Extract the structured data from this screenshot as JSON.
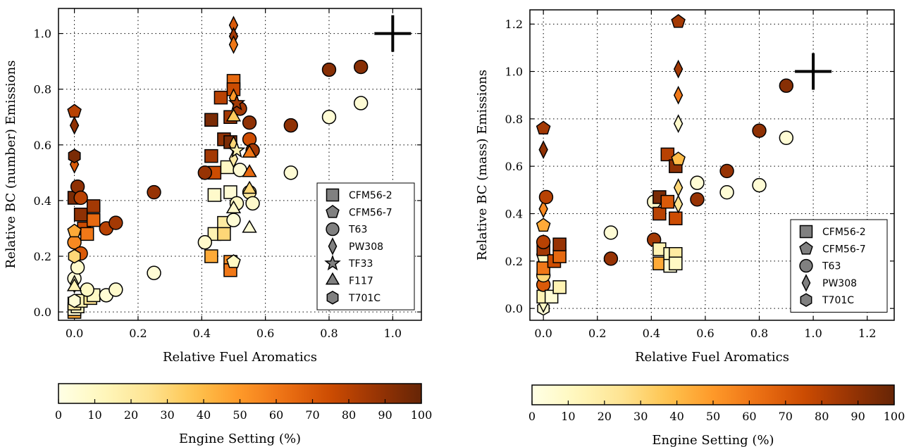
{
  "chart_data": [
    {
      "type": "scatter",
      "title": "",
      "xlabel": "Relative Fuel Aromatics",
      "ylabel": "Relative BC (number) Emissions",
      "xlim": [
        -0.05,
        1.09
      ],
      "ylim": [
        -0.03,
        1.09
      ],
      "xticks": [
        "0.0",
        "0.2",
        "0.4",
        "0.6",
        "0.8",
        "1.0"
      ],
      "yticks": [
        "0.0",
        "0.2",
        "0.4",
        "0.6",
        "0.8",
        "1.0"
      ],
      "grid": true,
      "legend_position": "bottom-right",
      "legend": [
        {
          "label": "CFM56-2",
          "marker": "square"
        },
        {
          "label": "CFM56-7",
          "marker": "pentagon"
        },
        {
          "label": "T63",
          "marker": "circle"
        },
        {
          "label": "PW308",
          "marker": "diamond"
        },
        {
          "label": "TF33",
          "marker": "star"
        },
        {
          "label": "F117",
          "marker": "triangle"
        },
        {
          "label": "T701C",
          "marker": "hexagon"
        }
      ],
      "reference_marker": {
        "x": 1.0,
        "y": 1.0,
        "marker": "plus"
      },
      "colorbar": {
        "label": "Engine Setting (%)",
        "min": 0,
        "max": 100,
        "ticks": [
          "0",
          "10",
          "20",
          "30",
          "40",
          "50",
          "60",
          "70",
          "80",
          "90",
          "100"
        ]
      },
      "points": [
        {
          "x": 0.0,
          "y": 0.0,
          "engine_setting": 45,
          "marker": "square"
        },
        {
          "x": 0.0,
          "y": 0.01,
          "engine_setting": 5,
          "marker": "square"
        },
        {
          "x": 0.01,
          "y": 0.02,
          "engine_setting": 10,
          "marker": "square"
        },
        {
          "x": 0.0,
          "y": 0.03,
          "engine_setting": 20,
          "marker": "square"
        },
        {
          "x": 0.02,
          "y": 0.04,
          "engine_setting": 15,
          "marker": "square"
        },
        {
          "x": 0.05,
          "y": 0.05,
          "engine_setting": 25,
          "marker": "square"
        },
        {
          "x": 0.06,
          "y": 0.06,
          "engine_setting": 10,
          "marker": "square"
        },
        {
          "x": 0.0,
          "y": 0.41,
          "engine_setting": 95,
          "marker": "square"
        },
        {
          "x": 0.02,
          "y": 0.35,
          "engine_setting": 90,
          "marker": "square"
        },
        {
          "x": 0.03,
          "y": 0.3,
          "engine_setting": 75,
          "marker": "square"
        },
        {
          "x": 0.06,
          "y": 0.38,
          "engine_setting": 85,
          "marker": "square"
        },
        {
          "x": 0.06,
          "y": 0.33,
          "engine_setting": 65,
          "marker": "square"
        },
        {
          "x": 0.04,
          "y": 0.28,
          "engine_setting": 60,
          "marker": "square"
        },
        {
          "x": 0.0,
          "y": 0.12,
          "engine_setting": 5,
          "marker": "circle"
        },
        {
          "x": 0.0,
          "y": 0.25,
          "engine_setting": 55,
          "marker": "circle"
        },
        {
          "x": 0.01,
          "y": 0.45,
          "engine_setting": 90,
          "marker": "circle"
        },
        {
          "x": 0.02,
          "y": 0.41,
          "engine_setting": 80,
          "marker": "circle"
        },
        {
          "x": 0.02,
          "y": 0.21,
          "engine_setting": 70,
          "marker": "circle"
        },
        {
          "x": 0.01,
          "y": 0.16,
          "engine_setting": 8,
          "marker": "circle"
        },
        {
          "x": 0.04,
          "y": 0.08,
          "engine_setting": 10,
          "marker": "circle"
        },
        {
          "x": 0.1,
          "y": 0.06,
          "engine_setting": 5,
          "marker": "circle"
        },
        {
          "x": 0.13,
          "y": 0.08,
          "engine_setting": 8,
          "marker": "circle"
        },
        {
          "x": 0.1,
          "y": 0.3,
          "engine_setting": 80,
          "marker": "circle"
        },
        {
          "x": 0.13,
          "y": 0.32,
          "engine_setting": 85,
          "marker": "circle"
        },
        {
          "x": 0.0,
          "y": 0.72,
          "engine_setting": 80,
          "marker": "pentagon"
        },
        {
          "x": 0.0,
          "y": 0.29,
          "engine_setting": 45,
          "marker": "pentagon"
        },
        {
          "x": 0.0,
          "y": 0.67,
          "engine_setting": 90,
          "marker": "diamond"
        },
        {
          "x": 0.0,
          "y": 0.53,
          "engine_setting": 70,
          "marker": "diamond"
        },
        {
          "x": 0.0,
          "y": 0.1,
          "engine_setting": 10,
          "marker": "diamond"
        },
        {
          "x": 0.0,
          "y": 0.56,
          "engine_setting": 95,
          "marker": "hexagon"
        },
        {
          "x": 0.0,
          "y": 0.2,
          "engine_setting": 30,
          "marker": "hexagon"
        },
        {
          "x": 0.0,
          "y": 0.04,
          "engine_setting": 5,
          "marker": "hexagon"
        },
        {
          "x": 0.0,
          "y": 0.09,
          "engine_setting": 15,
          "marker": "triangle"
        },
        {
          "x": 0.25,
          "y": 0.43,
          "engine_setting": 88,
          "marker": "circle"
        },
        {
          "x": 0.25,
          "y": 0.14,
          "engine_setting": 5,
          "marker": "circle"
        },
        {
          "x": 0.43,
          "y": 0.69,
          "engine_setting": 95,
          "marker": "square"
        },
        {
          "x": 0.43,
          "y": 0.56,
          "engine_setting": 85,
          "marker": "square"
        },
        {
          "x": 0.44,
          "y": 0.5,
          "engine_setting": 75,
          "marker": "square"
        },
        {
          "x": 0.44,
          "y": 0.42,
          "engine_setting": 8,
          "marker": "square"
        },
        {
          "x": 0.44,
          "y": 0.28,
          "engine_setting": 15,
          "marker": "square"
        },
        {
          "x": 0.43,
          "y": 0.2,
          "engine_setting": 45,
          "marker": "square"
        },
        {
          "x": 0.46,
          "y": 0.77,
          "engine_setting": 80,
          "marker": "square"
        },
        {
          "x": 0.47,
          "y": 0.62,
          "engine_setting": 90,
          "marker": "square"
        },
        {
          "x": 0.47,
          "y": 0.32,
          "engine_setting": 20,
          "marker": "square"
        },
        {
          "x": 0.47,
          "y": 0.28,
          "engine_setting": 30,
          "marker": "square"
        },
        {
          "x": 0.48,
          "y": 0.52,
          "engine_setting": 10,
          "marker": "square"
        },
        {
          "x": 0.49,
          "y": 0.43,
          "engine_setting": 5,
          "marker": "square"
        },
        {
          "x": 0.49,
          "y": 0.18,
          "engine_setting": 55,
          "marker": "square"
        },
        {
          "x": 0.49,
          "y": 0.15,
          "engine_setting": 60,
          "marker": "square"
        },
        {
          "x": 0.5,
          "y": 0.83,
          "engine_setting": 65,
          "marker": "square"
        },
        {
          "x": 0.5,
          "y": 0.8,
          "engine_setting": 75,
          "marker": "square"
        },
        {
          "x": 0.49,
          "y": 0.7,
          "engine_setting": 85,
          "marker": "square"
        },
        {
          "x": 0.49,
          "y": 0.61,
          "engine_setting": 95,
          "marker": "square"
        },
        {
          "x": 0.5,
          "y": 0.18,
          "engine_setting": 10,
          "marker": "pentagon"
        },
        {
          "x": 0.5,
          "y": 0.33,
          "engine_setting": 5,
          "marker": "circle"
        },
        {
          "x": 0.51,
          "y": 0.39,
          "engine_setting": 10,
          "marker": "circle"
        },
        {
          "x": 0.52,
          "y": 0.51,
          "engine_setting": 5,
          "marker": "circle"
        },
        {
          "x": 0.52,
          "y": 0.73,
          "engine_setting": 85,
          "marker": "circle"
        },
        {
          "x": 0.41,
          "y": 0.5,
          "engine_setting": 88,
          "marker": "circle"
        },
        {
          "x": 0.41,
          "y": 0.25,
          "engine_setting": 8,
          "marker": "circle"
        },
        {
          "x": 0.55,
          "y": 0.68,
          "engine_setting": 90,
          "marker": "circle"
        },
        {
          "x": 0.55,
          "y": 0.62,
          "engine_setting": 75,
          "marker": "circle"
        },
        {
          "x": 0.56,
          "y": 0.58,
          "engine_setting": 85,
          "marker": "circle"
        },
        {
          "x": 0.55,
          "y": 0.43,
          "engine_setting": 20,
          "marker": "circle"
        },
        {
          "x": 0.56,
          "y": 0.39,
          "engine_setting": 8,
          "marker": "circle"
        },
        {
          "x": 0.5,
          "y": 1.03,
          "engine_setting": 70,
          "marker": "diamond"
        },
        {
          "x": 0.5,
          "y": 0.99,
          "engine_setting": 85,
          "marker": "diamond"
        },
        {
          "x": 0.5,
          "y": 0.96,
          "engine_setting": 60,
          "marker": "diamond"
        },
        {
          "x": 0.5,
          "y": 0.77,
          "engine_setting": 50,
          "marker": "diamond"
        },
        {
          "x": 0.5,
          "y": 0.6,
          "engine_setting": 30,
          "marker": "diamond"
        },
        {
          "x": 0.5,
          "y": 0.55,
          "engine_setting": 20,
          "marker": "diamond"
        },
        {
          "x": 0.51,
          "y": 0.75,
          "engine_setting": 85,
          "marker": "star"
        },
        {
          "x": 0.51,
          "y": 0.58,
          "engine_setting": 15,
          "marker": "star"
        },
        {
          "x": 0.5,
          "y": 0.7,
          "engine_setting": 35,
          "marker": "triangle"
        },
        {
          "x": 0.5,
          "y": 0.37,
          "engine_setting": 8,
          "marker": "triangle"
        },
        {
          "x": 0.55,
          "y": 0.57,
          "engine_setting": 60,
          "marker": "triangle"
        },
        {
          "x": 0.55,
          "y": 0.5,
          "engine_setting": 65,
          "marker": "triangle"
        },
        {
          "x": 0.55,
          "y": 0.44,
          "engine_setting": 30,
          "marker": "triangle"
        },
        {
          "x": 0.55,
          "y": 0.3,
          "engine_setting": 5,
          "marker": "triangle"
        },
        {
          "x": 0.68,
          "y": 0.67,
          "engine_setting": 90,
          "marker": "circle"
        },
        {
          "x": 0.68,
          "y": 0.5,
          "engine_setting": 5,
          "marker": "circle"
        },
        {
          "x": 0.8,
          "y": 0.87,
          "engine_setting": 92,
          "marker": "circle"
        },
        {
          "x": 0.8,
          "y": 0.7,
          "engine_setting": 5,
          "marker": "circle"
        },
        {
          "x": 0.9,
          "y": 0.88,
          "engine_setting": 92,
          "marker": "circle"
        },
        {
          "x": 0.9,
          "y": 0.75,
          "engine_setting": 5,
          "marker": "circle"
        }
      ]
    },
    {
      "type": "scatter",
      "title": "",
      "xlabel": "Relative Fuel Aromatics",
      "ylabel": "Relative BC (mass) Emissions",
      "xlim": [
        -0.05,
        1.3
      ],
      "ylim": [
        -0.05,
        1.26
      ],
      "xticks": [
        "0.0",
        "0.2",
        "0.4",
        "0.6",
        "0.8",
        "1.0",
        "1.2"
      ],
      "yticks": [
        "0.0",
        "0.2",
        "0.4",
        "0.6",
        "0.8",
        "1.0",
        "1.2"
      ],
      "grid": true,
      "legend_position": "bottom-right",
      "legend": [
        {
          "label": "CFM56-2",
          "marker": "square"
        },
        {
          "label": "CFM56-7",
          "marker": "pentagon"
        },
        {
          "label": "T63",
          "marker": "circle"
        },
        {
          "label": "PW308",
          "marker": "diamond"
        },
        {
          "label": "T701C",
          "marker": "hexagon"
        }
      ],
      "reference_marker": {
        "x": 1.0,
        "y": 1.0,
        "marker": "plus"
      },
      "colorbar": {
        "label": "Engine Setting (%)",
        "min": 0,
        "max": 100,
        "ticks": [
          "0",
          "10",
          "20",
          "30",
          "40",
          "50",
          "60",
          "70",
          "80",
          "90",
          "100"
        ]
      },
      "points": [
        {
          "x": 0.0,
          "y": 0.0,
          "engine_setting": 5,
          "marker": "hexagon"
        },
        {
          "x": 0.0,
          "y": 0.02,
          "engine_setting": 10,
          "marker": "diamond"
        },
        {
          "x": 0.0,
          "y": 0.05,
          "engine_setting": 15,
          "marker": "square"
        },
        {
          "x": 0.0,
          "y": 0.1,
          "engine_setting": 70,
          "marker": "circle"
        },
        {
          "x": 0.0,
          "y": 0.14,
          "engine_setting": 30,
          "marker": "circle"
        },
        {
          "x": 0.0,
          "y": 0.17,
          "engine_setting": 60,
          "marker": "square"
        },
        {
          "x": 0.0,
          "y": 0.22,
          "engine_setting": 10,
          "marker": "pentagon"
        },
        {
          "x": 0.0,
          "y": 0.25,
          "engine_setting": 85,
          "marker": "square"
        },
        {
          "x": 0.0,
          "y": 0.28,
          "engine_setting": 80,
          "marker": "circle"
        },
        {
          "x": 0.0,
          "y": 0.35,
          "engine_setting": 45,
          "marker": "pentagon"
        },
        {
          "x": 0.0,
          "y": 0.42,
          "engine_setting": 55,
          "marker": "diamond"
        },
        {
          "x": 0.01,
          "y": 0.47,
          "engine_setting": 80,
          "marker": "circle"
        },
        {
          "x": 0.0,
          "y": 0.67,
          "engine_setting": 90,
          "marker": "diamond"
        },
        {
          "x": 0.0,
          "y": 0.76,
          "engine_setting": 85,
          "marker": "pentagon"
        },
        {
          "x": 0.03,
          "y": 0.05,
          "engine_setting": 5,
          "marker": "square"
        },
        {
          "x": 0.04,
          "y": 0.2,
          "engine_setting": 75,
          "marker": "square"
        },
        {
          "x": 0.06,
          "y": 0.09,
          "engine_setting": 15,
          "marker": "square"
        },
        {
          "x": 0.06,
          "y": 0.22,
          "engine_setting": 65,
          "marker": "square"
        },
        {
          "x": 0.06,
          "y": 0.27,
          "engine_setting": 88,
          "marker": "square"
        },
        {
          "x": 0.25,
          "y": 0.32,
          "engine_setting": 5,
          "marker": "circle"
        },
        {
          "x": 0.25,
          "y": 0.21,
          "engine_setting": 88,
          "marker": "circle"
        },
        {
          "x": 0.41,
          "y": 0.29,
          "engine_setting": 85,
          "marker": "circle"
        },
        {
          "x": 0.41,
          "y": 0.45,
          "engine_setting": 8,
          "marker": "circle"
        },
        {
          "x": 0.43,
          "y": 0.47,
          "engine_setting": 95,
          "marker": "square"
        },
        {
          "x": 0.43,
          "y": 0.4,
          "engine_setting": 80,
          "marker": "square"
        },
        {
          "x": 0.43,
          "y": 0.25,
          "engine_setting": 15,
          "marker": "square"
        },
        {
          "x": 0.43,
          "y": 0.19,
          "engine_setting": 45,
          "marker": "square"
        },
        {
          "x": 0.46,
          "y": 0.65,
          "engine_setting": 80,
          "marker": "square"
        },
        {
          "x": 0.46,
          "y": 0.45,
          "engine_setting": 70,
          "marker": "square"
        },
        {
          "x": 0.47,
          "y": 0.23,
          "engine_setting": 10,
          "marker": "square"
        },
        {
          "x": 0.47,
          "y": 0.18,
          "engine_setting": 5,
          "marker": "square"
        },
        {
          "x": 0.49,
          "y": 0.6,
          "engine_setting": 90,
          "marker": "square"
        },
        {
          "x": 0.49,
          "y": 0.38,
          "engine_setting": 75,
          "marker": "square"
        },
        {
          "x": 0.49,
          "y": 0.23,
          "engine_setting": 20,
          "marker": "square"
        },
        {
          "x": 0.49,
          "y": 0.19,
          "engine_setting": 10,
          "marker": "square"
        },
        {
          "x": 0.5,
          "y": 1.21,
          "engine_setting": 85,
          "marker": "pentagon"
        },
        {
          "x": 0.5,
          "y": 1.01,
          "engine_setting": 85,
          "marker": "diamond"
        },
        {
          "x": 0.5,
          "y": 0.9,
          "engine_setting": 60,
          "marker": "diamond"
        },
        {
          "x": 0.5,
          "y": 0.78,
          "engine_setting": 8,
          "marker": "diamond"
        },
        {
          "x": 0.5,
          "y": 0.63,
          "engine_setting": 40,
          "marker": "pentagon"
        },
        {
          "x": 0.5,
          "y": 0.51,
          "engine_setting": 30,
          "marker": "diamond"
        },
        {
          "x": 0.5,
          "y": 0.44,
          "engine_setting": 25,
          "marker": "diamond"
        },
        {
          "x": 0.57,
          "y": 0.53,
          "engine_setting": 5,
          "marker": "circle"
        },
        {
          "x": 0.57,
          "y": 0.46,
          "engine_setting": 88,
          "marker": "circle"
        },
        {
          "x": 0.68,
          "y": 0.58,
          "engine_setting": 88,
          "marker": "circle"
        },
        {
          "x": 0.68,
          "y": 0.49,
          "engine_setting": 5,
          "marker": "circle"
        },
        {
          "x": 0.8,
          "y": 0.75,
          "engine_setting": 90,
          "marker": "circle"
        },
        {
          "x": 0.8,
          "y": 0.52,
          "engine_setting": 5,
          "marker": "circle"
        },
        {
          "x": 0.9,
          "y": 0.94,
          "engine_setting": 92,
          "marker": "circle"
        },
        {
          "x": 0.9,
          "y": 0.72,
          "engine_setting": 5,
          "marker": "circle"
        }
      ]
    }
  ]
}
